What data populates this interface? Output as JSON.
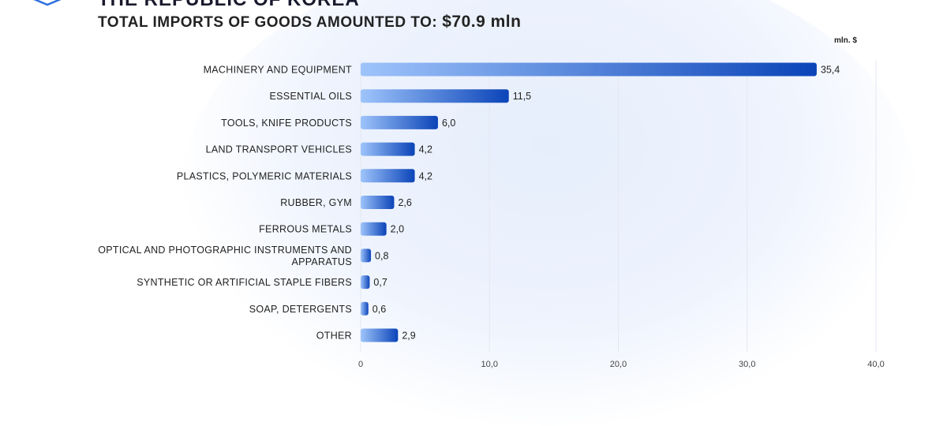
{
  "header": {
    "title": "THE REPUBLIC OF KOREA",
    "subtitle": "TOTAL IMPORTS OF GOODS AMOUNTED TO:",
    "total": "$70.9  mln",
    "unit": "mln. $"
  },
  "colors": {
    "bar_start": "#9ec4fb",
    "bar_end": "#0b44b8",
    "grid": "#e3e8f0",
    "logo": "#2f6fe0"
  },
  "chart_data": {
    "type": "bar",
    "orientation": "horizontal",
    "title": "TOTAL IMPORTS OF GOODS AMOUNTED TO: $70.9  mln",
    "xlabel": "",
    "ylabel": "",
    "unit": "mln. $",
    "categories": [
      "MACHINERY AND EQUIPMENT",
      "ESSENTIAL OILS",
      "TOOLS, KNIFE PRODUCTS",
      "LAND TRANSPORT VEHICLES",
      "PLASTICS, POLYMERIC MATERIALS",
      "RUBBER, GYM",
      "FERROUS METALS",
      "OPTICAL AND PHOTOGRAPHIC INSTRUMENTS AND APPARATUS",
      "SYNTHETIC OR ARTIFICIAL STAPLE FIBERS",
      "SOAP, DETERGENTS",
      "OTHER"
    ],
    "category_lines": [
      [
        "MACHINERY AND EQUIPMENT"
      ],
      [
        "ESSENTIAL OILS"
      ],
      [
        "TOOLS, KNIFE PRODUCTS"
      ],
      [
        "LAND TRANSPORT VEHICLES"
      ],
      [
        "PLASTICS, POLYMERIC MATERIALS"
      ],
      [
        "RUBBER, GYM"
      ],
      [
        "FERROUS METALS"
      ],
      [
        "OPTICAL AND PHOTOGRAPHIC INSTRUMENTS AND",
        "APPARATUS"
      ],
      [
        "SYNTHETIC OR ARTIFICIAL STAPLE FIBERS"
      ],
      [
        "SOAP, DETERGENTS"
      ],
      [
        "OTHER"
      ]
    ],
    "values": [
      35.4,
      11.5,
      6.0,
      4.2,
      4.2,
      2.6,
      2.0,
      0.8,
      0.7,
      0.6,
      2.9
    ],
    "value_labels": [
      "35,4",
      "11,5",
      "6,0",
      "4,2",
      "4,2",
      "2,6",
      "2,0",
      "0,8",
      "0,7",
      "0,6",
      "2,9"
    ],
    "xlim": [
      0,
      40
    ],
    "ticks": [
      0,
      10,
      20,
      30,
      40
    ],
    "tick_labels": [
      "0",
      "10,0",
      "20,0",
      "30,0",
      "40,0"
    ],
    "grid": true,
    "legend": "none"
  }
}
